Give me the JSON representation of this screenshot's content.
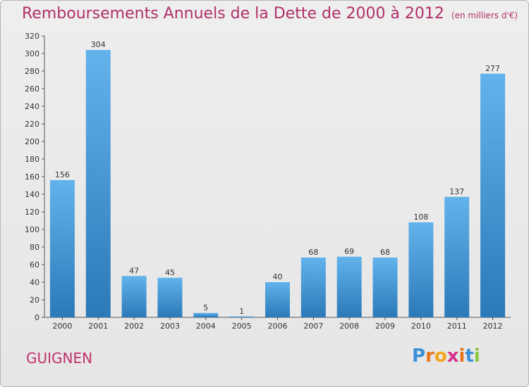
{
  "title": "Remboursements Annuels de la Dette de 2000 à 2012",
  "subtitle": "(en milliers d'€)",
  "commune": "GUIGNEN",
  "logo_text": "Proxiti",
  "colors": {
    "title": "#b0306a",
    "bar_top": "#62b3ec",
    "bar_bottom": "#2b79b8",
    "background": "#e8e8e8"
  },
  "chart_data": {
    "type": "bar",
    "categories": [
      "2000",
      "2001",
      "2002",
      "2003",
      "2004",
      "2005",
      "2006",
      "2007",
      "2008",
      "2009",
      "2010",
      "2011",
      "2012"
    ],
    "values": [
      156,
      304,
      47,
      45,
      5,
      1,
      40,
      68,
      69,
      68,
      108,
      137,
      277
    ],
    "title": "Remboursements Annuels de la Dette de 2000 à 2012",
    "subtitle": "(en milliers d'€)",
    "xlabel": "",
    "ylabel": "",
    "ylim": [
      0,
      320
    ],
    "yticks": [
      0,
      20,
      40,
      60,
      80,
      100,
      120,
      140,
      160,
      180,
      200,
      220,
      240,
      260,
      280,
      300,
      320
    ],
    "grid": false,
    "legend": "none"
  }
}
